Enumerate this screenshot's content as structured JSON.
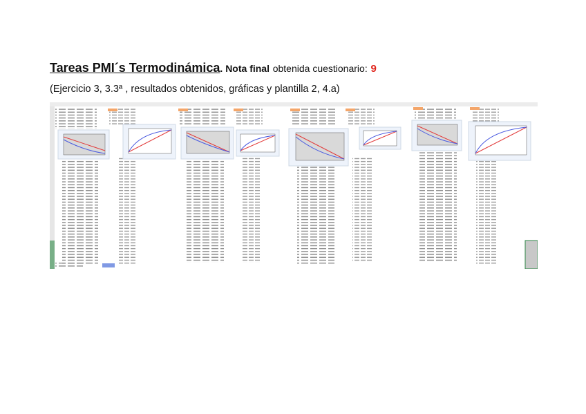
{
  "header": {
    "title": "Tareas PMI´s Termodinámica",
    "note_label": ". Nota final",
    "note_text": "obtenida cuestionario:",
    "grade": 9
  },
  "subtitle": "(Ejercicio 3, 3.3ª , resultados obtenidos, gráficas y plantilla 2, 4.a)"
}
